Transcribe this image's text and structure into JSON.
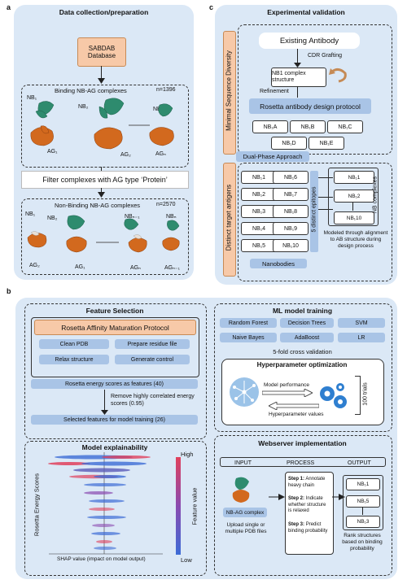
{
  "panel_a": {
    "letter": "a",
    "title": "Data collection/preparation",
    "db": "SABDAB Database",
    "binding_title": "Binding NB-AG complexes",
    "binding_n": "n=1396",
    "nb1": "NB₁",
    "nb2": "NB₂",
    "nbn": "NBₙ",
    "ag1": "AG₁",
    "ag2": "AG₂",
    "agn": "AGₙ",
    "filter": "Filter complexes with AG type ‘Protein’",
    "nonbinding_title": "Non-Binding NB-AG complexes",
    "nonbinding_n": "n=2570",
    "nb1b": "NB₁",
    "nb2b": "NB₂",
    "nbn1": "NBₙ₋₁",
    "nbnb": "NBₙ",
    "ag2b": "AG₂",
    "ag1b": "AG₁",
    "agnb": "AGₙ",
    "agn1": "AGₙ₋₁"
  },
  "panel_c": {
    "letter": "c",
    "title": "Experimental validation",
    "side_top": "Minimal Sequence Diversity",
    "side_bottom": "Distinct target antigens",
    "existing": "Existing Antibody",
    "cdr": "CDR Grafting",
    "nb1_complex": "NB1 complex structure",
    "refinement": "Refinement",
    "rosetta_design": "Rosetta antibody design protocol",
    "variants": [
      "NB₁A",
      "NB₁B",
      "NB₁C",
      "NB₁D",
      "NB₁E"
    ],
    "dual": "Dual-Phase Approach",
    "nanobodies_left": [
      "NB₁1",
      "NB₁2",
      "NB₁3",
      "NB₁4",
      "NB₁5"
    ],
    "nanobodies_right": [
      "NB₁6",
      "NB₁7",
      "NB₁8",
      "NB₁9",
      "NB₁10"
    ],
    "nanobodies_label": "Nanobodies",
    "epitopes": "5 distinct epitopes",
    "complexes": [
      "NB₁1",
      "NB₁2",
      "NB₁10"
    ],
    "nb_complexes": "NB complexes",
    "modeled": "Modeled through alignment to AB structure during design process"
  },
  "panel_b": {
    "letter": "b",
    "feature_title": "Feature Selection",
    "protocol": "Rosetta Affinity Maturation Protocol",
    "steps": [
      "Clean PDB",
      "Prepare residue file",
      "Relax structure",
      "Generate control"
    ],
    "energy": "Rosetta energy scores as features (40)",
    "remove": "Remove highly correlated energy scores (0.95)",
    "selected": "Selected features for model training (26)",
    "explain_title": "Model explainability",
    "shap_y": "Rosetta Energy Scores",
    "shap_x": "SHAP value (impact on model output)",
    "high": "High",
    "low": "Low",
    "feature_value": "Feature value",
    "ml_title": "ML model training",
    "models": [
      "Random Forest",
      "Decision Trees",
      "SVM",
      "Naive Bayes",
      "AdaBoost",
      "LR"
    ],
    "cv": "5-fold cross validation",
    "hyper_title": "Hyperparameter optimization",
    "perf": "Model performance",
    "hvals": "Hyperparameter values",
    "trials": "100 trials",
    "web_title": "Webserver implementation",
    "input": "INPUT",
    "process": "PROCESS",
    "output": "OUTPUT",
    "nbag": "NB-AG complex",
    "upload": "Upload single or multiple PDB files",
    "step1_b": "Step 1:",
    "step1": "Annotate heavy chain",
    "step2_b": "Step 2:",
    "step2": "Indicate whether structure is relaxed",
    "step3_b": "Step 3:",
    "step3": "Predict binding probability",
    "out": [
      "NB₁1",
      "NB₁5",
      "NB₁3"
    ],
    "rank": "Rank structures based on binding probability"
  },
  "colors": {
    "panel": "#dbe8f6",
    "box": "#a9c4e6",
    "orange": "#f7c9a8",
    "green": "#2e8b6e",
    "ag": "#d2691e"
  }
}
